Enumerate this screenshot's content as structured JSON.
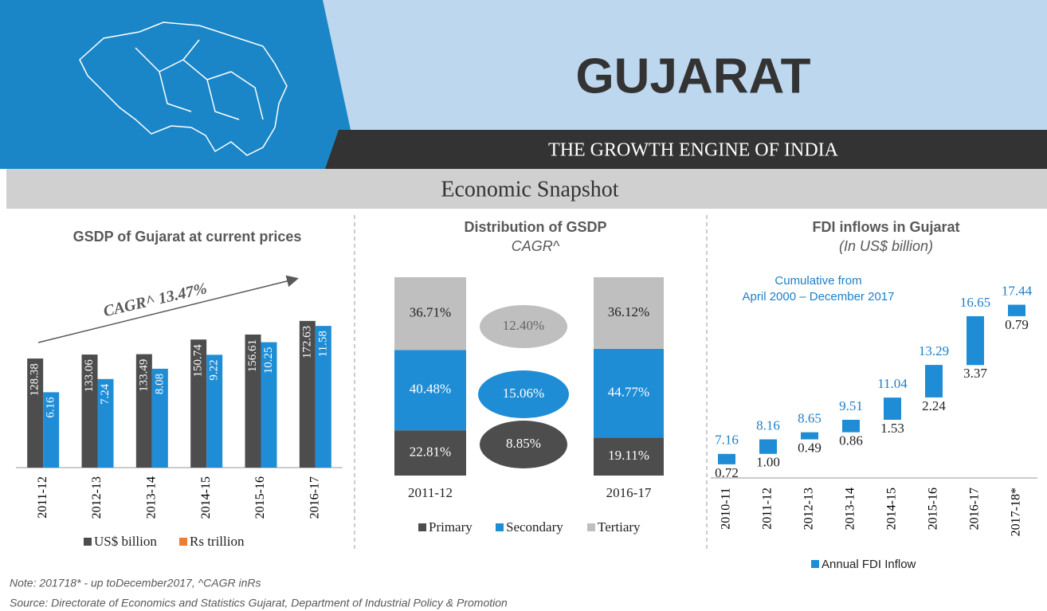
{
  "header": {
    "title": "GUJARAT",
    "subtitle": "THE GROWTH ENGINE OF INDIA",
    "section": "Economic Snapshot"
  },
  "chart_data": [
    {
      "type": "bar",
      "title": "GSDP of Gujarat at current prices",
      "annotation": "CAGR^ 13.47%",
      "categories": [
        "2011-12",
        "2012-13",
        "2013-14",
        "2014-15",
        "2015-16",
        "2016-17"
      ],
      "ylim": [
        0,
        180
      ],
      "y2lim": [
        0,
        12.5
      ],
      "series": [
        {
          "name": "US$ billion",
          "color": "#4d4d4d",
          "values": [
            128.38,
            133.06,
            133.49,
            150.74,
            156.61,
            172.63
          ]
        },
        {
          "name": "Rs trillion",
          "color": "#1f8dd6",
          "legend_color": "#ed7d31",
          "axis": "y2",
          "values": [
            6.16,
            7.24,
            8.08,
            9.22,
            10.25,
            11.58
          ]
        }
      ]
    },
    {
      "type": "stacked_bar",
      "title": "Distribution of GSDP",
      "subtitle": "CAGR^",
      "categories": [
        "2011-12",
        "2016-17"
      ],
      "ylim": [
        0,
        100
      ],
      "series": [
        {
          "name": "Primary",
          "color": "#4d4d4d",
          "values": [
            22.81,
            19.11
          ],
          "value_labels": [
            "22.81%",
            "19.11%"
          ],
          "cagr": 8.85,
          "cagr_label": "8.85%"
        },
        {
          "name": "Secondary",
          "color": "#1f8dd6",
          "values": [
            40.48,
            44.77
          ],
          "value_labels": [
            "40.48%",
            "44.77%"
          ],
          "cagr": 15.06,
          "cagr_label": "15.06%"
        },
        {
          "name": "Tertiary",
          "color": "#bfbfbf",
          "values": [
            36.71,
            36.12
          ],
          "value_labels": [
            "36.71%",
            "36.12%"
          ],
          "cagr": 12.4,
          "cagr_label": "12.40%"
        }
      ]
    },
    {
      "type": "waterfall",
      "title": "FDI inflows in Gujarat",
      "subtitle": "(In US$ billion)",
      "annotation": [
        "Cumulative from",
        "April 2000 – December 2017"
      ],
      "categories": [
        "2010-11",
        "2011-12",
        "2012-13",
        "2013-14",
        "2014-15",
        "2015-16",
        "2016-17",
        "2017-18*"
      ],
      "ylim": [
        5.5,
        19.5
      ],
      "series": [
        {
          "name": "Annual FDI Inflow",
          "color": "#1f8dd6",
          "values": [
            0.72,
            1.0,
            0.49,
            0.86,
            1.53,
            2.24,
            3.37,
            0.79
          ],
          "value_labels": [
            "0.72",
            "1.00",
            "0.49",
            "0.86",
            "1.53",
            "2.24",
            "3.37",
            "0.79"
          ],
          "cumulative": [
            7.16,
            8.16,
            8.65,
            9.51,
            11.04,
            13.29,
            16.65,
            17.44
          ]
        }
      ]
    }
  ],
  "note": "Note: 201718* - up toDecember2017, ^CAGR inRs",
  "source": "Source: Directorate of Economics and Statistics Gujarat, Department of Industrial Policy & Promotion"
}
